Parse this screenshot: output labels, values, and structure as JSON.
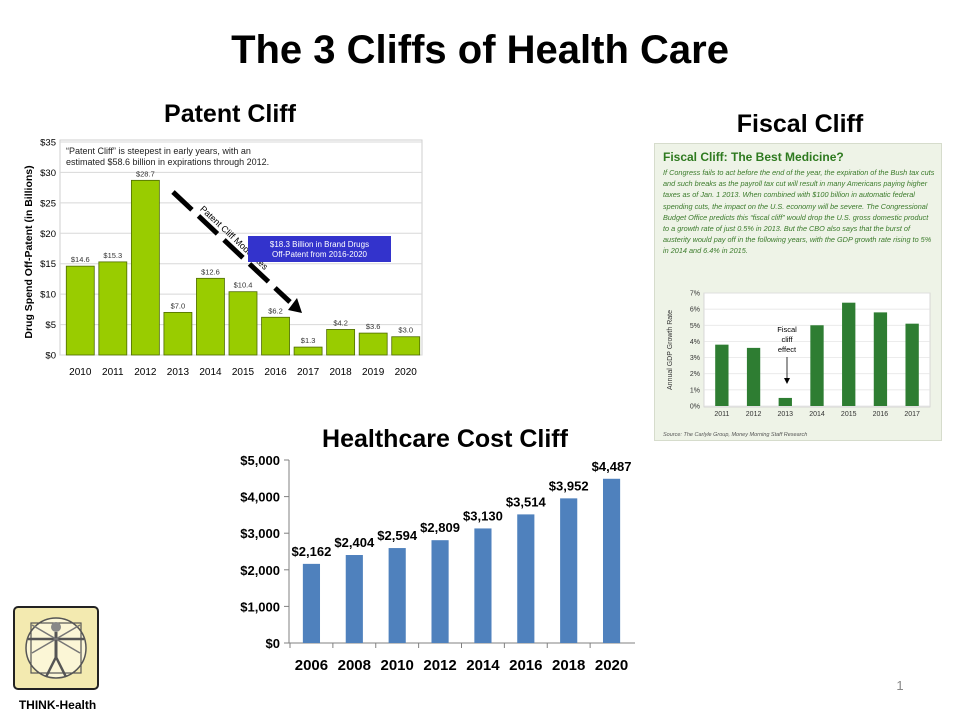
{
  "slide": {
    "title": "The 3 Cliffs of Health Care",
    "page_number": "1",
    "logo_caption": "THINK-Health"
  },
  "patent": {
    "title": "Patent Cliff",
    "note": "“Patent Cliff” is steepest in early years, with an estimated $58.6 billion in expirations through 2012.",
    "arrow_label": "Patent Cliff Moderates",
    "callout_line1": "$18.3 Billion in Brand Drugs",
    "callout_line2": "Off-Patent from 2016-2020"
  },
  "fiscal": {
    "title": "Fiscal Cliff",
    "heading": "Fiscal Cliff: The Best Medicine?",
    "body": "If Congress fails to act before the end of the year, the expiration of the Bush tax cuts and such breaks as the payroll tax cut will result in many Americans paying higher taxes as of Jan. 1 2013. When combined with $100 billion in automatic federal spending cuts, the impact on the U.S. economy will be severe. The Congressional Budget Office predicts this “fiscal cliff” would drop the U.S. gross domestic product to a growth rate of just 0.5% in 2013. But the CBO also says that the burst of austerity would pay off in the following years, with the GDP growth rate rising to 5% in 2014 and 6.4% in 2015.",
    "annotation_line1": "Fiscal",
    "annotation_line2": "cliff",
    "annotation_line3": "effect",
    "source": "Source: The Carlyle Group, Money Morning Staff Research"
  },
  "healthcare": {
    "title": "Healthcare Cost Cliff"
  },
  "colors": {
    "patent_bar": "#99cc00",
    "fiscal_bar": "#2e7d32",
    "hc_bar": "#4f81bd",
    "callout_bg": "#3333cc"
  },
  "chart_data": [
    {
      "type": "bar",
      "title": "Patent Cliff",
      "categories": [
        "2010",
        "2011",
        "2012",
        "2013",
        "2014",
        "2015",
        "2016",
        "2017",
        "2018",
        "2019",
        "2020"
      ],
      "values": [
        14.6,
        15.3,
        28.7,
        7.0,
        12.6,
        10.4,
        6.2,
        1.3,
        4.2,
        3.6,
        3.0
      ],
      "data_labels": [
        "$14.6",
        "$15.3",
        "$28.7",
        "$7.0",
        "$12.6",
        "$10.4",
        "$6.2",
        "$1.3",
        "$4.2",
        "$3.6",
        "$3.0"
      ],
      "ylabel": "Drug Spend Off-Patent (in Billions)",
      "ylim": [
        0,
        35
      ],
      "yticks": [
        "$0",
        "$5",
        "$10",
        "$15",
        "$20",
        "$25",
        "$30",
        "$35"
      ],
      "grid": true
    },
    {
      "type": "bar",
      "categories": [
        "2011",
        "2012",
        "2013",
        "2014",
        "2015",
        "2016",
        "2017"
      ],
      "values": [
        3.8,
        3.6,
        0.5,
        5.0,
        6.4,
        5.8,
        5.1
      ],
      "ylabel": "Annual GDP Growth Rate",
      "ylim": [
        0,
        7
      ],
      "yticks": [
        "0%",
        "1%",
        "2%",
        "3%",
        "4%",
        "5%",
        "6%",
        "7%"
      ],
      "grid": true
    },
    {
      "type": "bar",
      "title": "Healthcare Cost Cliff",
      "categories": [
        "2006",
        "2008",
        "2010",
        "2012",
        "2014",
        "2016",
        "2018",
        "2020"
      ],
      "values": [
        2162,
        2404,
        2594,
        2809,
        3130,
        3514,
        3952,
        4487
      ],
      "data_labels": [
        "$2,162",
        "$2,404",
        "$2,594",
        "$2,809",
        "$3,130",
        "$3,514",
        "$3,952",
        "$4,487"
      ],
      "ylim": [
        0,
        5000
      ],
      "yticks": [
        "$0",
        "$1,000",
        "$2,000",
        "$3,000",
        "$4,000",
        "$5,000"
      ],
      "grid": false
    }
  ]
}
